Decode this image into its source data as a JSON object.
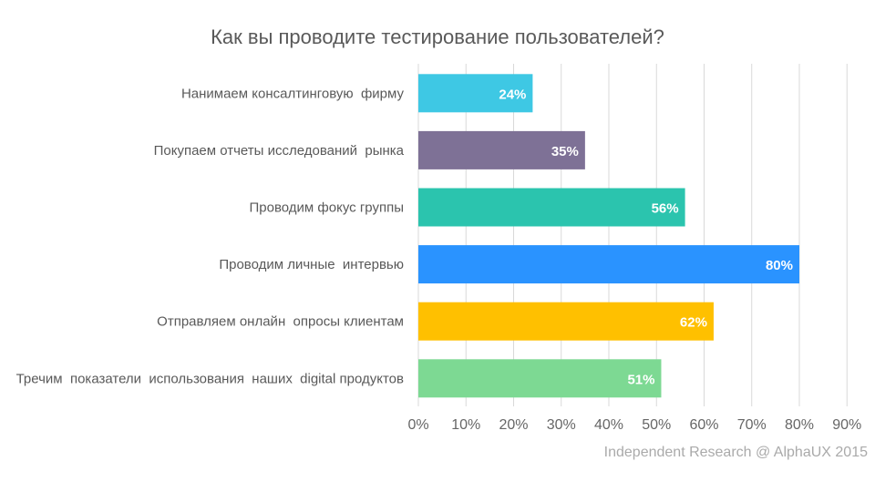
{
  "chart_data": {
    "type": "bar",
    "orientation": "horizontal",
    "title": "Как вы проводите тестирование пользователей?",
    "categories": [
      "Нанимаем консалтинговую  фирму",
      "Покупаем отчеты исследований  рынка",
      "Проводим фокус группы",
      "Проводим личные  интервью",
      "Отправляем онлайн  опросы клиентам",
      "Тречим  показатели  использования  наших  digital продуктов"
    ],
    "values": [
      24,
      35,
      56,
      80,
      62,
      51
    ],
    "data_labels": [
      "24%",
      "35%",
      "56%",
      "80%",
      "62%",
      "51%"
    ],
    "colors": [
      "#3EC8E4",
      "#7E7196",
      "#2BC4AE",
      "#2A93FF",
      "#FFC000",
      "#7DD993"
    ],
    "xlim": [
      0,
      90
    ],
    "xticks": [
      "0%",
      "10%",
      "20%",
      "30%",
      "40%",
      "50%",
      "60%",
      "70%",
      "80%",
      "90%"
    ],
    "grid": true,
    "legend": "none"
  },
  "footer": {
    "source": "Independent  Research @ AlphaUX 2015"
  }
}
